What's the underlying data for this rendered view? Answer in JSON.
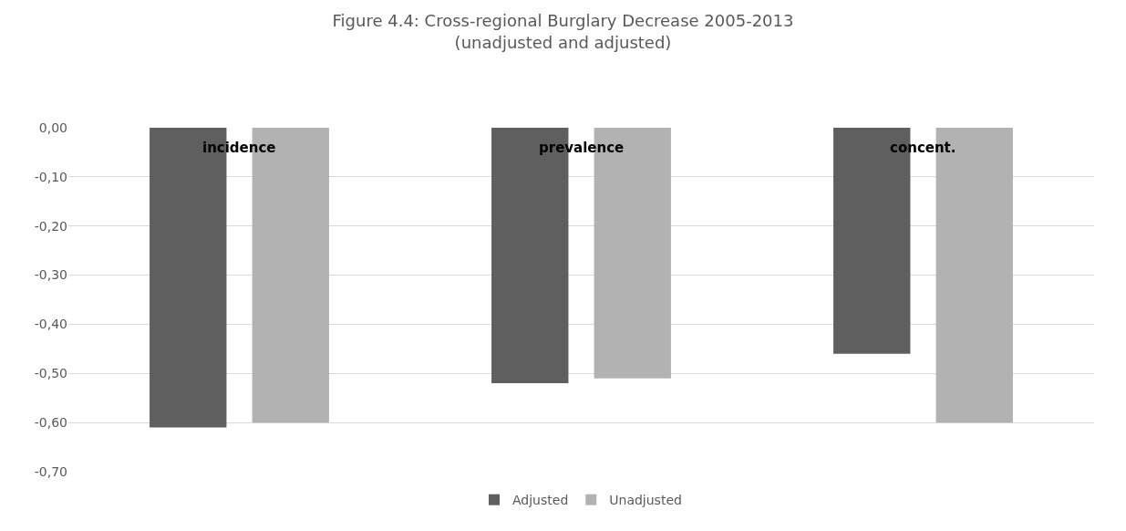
{
  "chart_data": {
    "type": "bar",
    "title": "Figure 4.4: Cross-regional Burglary Decrease 2005-2013\n(unadjusted and adjusted)",
    "categories": [
      "incidence",
      "prevalence",
      "concent."
    ],
    "series": [
      {
        "name": "Adjusted",
        "color": "#5f5f5f",
        "values": [
          -0.61,
          -0.52,
          -0.46
        ]
      },
      {
        "name": "Unadjusted",
        "color": "#b2b2b2",
        "values": [
          -0.6,
          -0.51,
          -0.6
        ]
      }
    ],
    "ylim": [
      -0.7,
      0
    ],
    "yticks": [
      {
        "value": 0,
        "label": "0,00"
      },
      {
        "value": -0.1,
        "label": "-0,10"
      },
      {
        "value": -0.2,
        "label": "-0,20"
      },
      {
        "value": -0.3,
        "label": "-0,30"
      },
      {
        "value": -0.4,
        "label": "-0,40"
      },
      {
        "value": -0.5,
        "label": "-0,50"
      },
      {
        "value": -0.6,
        "label": "-0,60"
      },
      {
        "value": -0.7,
        "label": "-0,70"
      }
    ],
    "grid": "y",
    "legend": "bottom"
  }
}
